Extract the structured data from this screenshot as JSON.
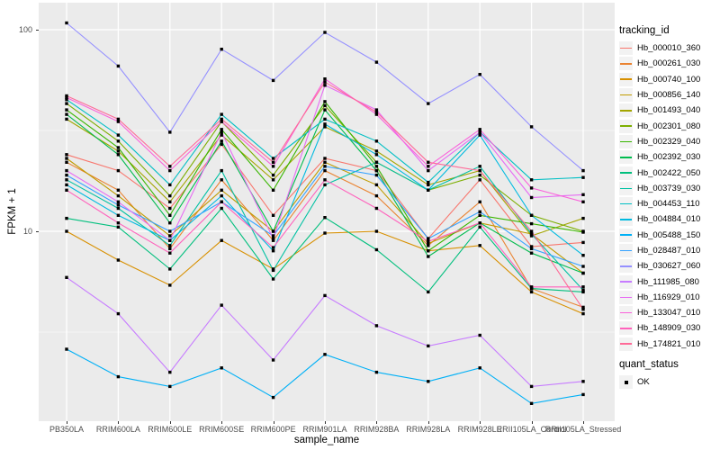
{
  "figure": {
    "x_axis_title": "sample_name",
    "y_axis_title": "FPKM + 1"
  },
  "legend": {
    "tracking_title": "tracking_id",
    "quant_title": "quant_status",
    "quant_items": [
      {
        "label": "OK",
        "marker": "black-square"
      }
    ]
  },
  "colors": {
    "panel_bg": "#EBEBEB",
    "grid": "#FFFFFF",
    "point": "#000000",
    "tick_mark": "#333333",
    "tick_label": "#4D4D4D",
    "legend_key_bg": "#F2F2F2"
  },
  "chart_data": {
    "type": "line",
    "title": "",
    "xlabel": "sample_name",
    "ylabel": "FPKM + 1",
    "y_scale": "log10",
    "ylim": [
      1.2,
      135
    ],
    "grid": true,
    "legend_position": "right",
    "point_shape": "filled-black-square",
    "y_ticks": [
      {
        "label": "100",
        "value": 100
      },
      {
        "label": "10",
        "value": 10
      }
    ],
    "y_minor_gridlines": [
      31.62,
      3.162
    ],
    "categories": [
      "PB350LA",
      "RRIM600LA",
      "RRIM600LE",
      "RRIM600SE",
      "RRIM600PE",
      "RRIM901LA",
      "RRIM928BA",
      "RRIM928LA",
      "RRIM928LE",
      "RRII105LA_Control",
      "RRII105LA_Stressed"
    ],
    "series": [
      {
        "name": "Hb_000010_360",
        "color": "#F8766D",
        "values": [
          24,
          20,
          13,
          27,
          12,
          23,
          20,
          9.2,
          18,
          8.4,
          8.8
        ]
      },
      {
        "name": "Hb_000261_030",
        "color": "#EA8331",
        "values": [
          22,
          16,
          8.2,
          18,
          9,
          20,
          15,
          8.5,
          14,
          5.2,
          4.2
        ]
      },
      {
        "name": "Hb_000740_100",
        "color": "#D89000",
        "values": [
          10,
          7.2,
          5.4,
          9,
          6.5,
          9.8,
          10,
          8,
          8.5,
          5,
          3.9
        ]
      },
      {
        "name": "Hb_000856_140",
        "color": "#C09B00",
        "values": [
          23,
          15,
          9.5,
          16,
          10,
          22,
          17,
          8.7,
          11,
          9.7,
          6.2
        ]
      },
      {
        "name": "Hb_001493_040",
        "color": "#A3A500",
        "values": [
          36,
          25,
          14,
          30,
          18,
          33,
          25,
          17,
          20,
          9.5,
          11.6
        ]
      },
      {
        "name": "Hb_002301_080",
        "color": "#7CAE00",
        "values": [
          43,
          28,
          15,
          35,
          19,
          42,
          22,
          16,
          19,
          12,
          10
        ]
      },
      {
        "name": "Hb_002329_040",
        "color": "#39B600",
        "values": [
          40,
          26,
          12,
          32,
          16,
          44,
          21,
          8,
          12,
          10.9,
          9.9
        ]
      },
      {
        "name": "Hb_002392_030",
        "color": "#00BB4E",
        "values": [
          38,
          24,
          11,
          28,
          10,
          40,
          20,
          7.5,
          11,
          7.8,
          6.2
        ]
      },
      {
        "name": "Hb_002422_050",
        "color": "#00BF7D",
        "values": [
          11.6,
          10.5,
          6.5,
          13,
          5.8,
          11.7,
          8.1,
          5,
          10.5,
          5.2,
          5
        ]
      },
      {
        "name": "Hb_003739_030",
        "color": "#00C1A3",
        "values": [
          18,
          13,
          8.5,
          20,
          6.4,
          17,
          22,
          16,
          21,
          9.7,
          5.1
        ]
      },
      {
        "name": "Hb_004453_110",
        "color": "#00BFC4",
        "values": [
          45,
          30,
          17,
          38,
          23,
          36,
          28,
          17.5,
          31,
          18,
          18.5
        ]
      },
      {
        "name": "Hb_004884_010",
        "color": "#00BAE0",
        "values": [
          17,
          12,
          9,
          15,
          8,
          34,
          24,
          16,
          30,
          12,
          7.6
        ]
      },
      {
        "name": "Hb_005488_150",
        "color": "#00B0F6",
        "values": [
          2.6,
          1.9,
          1.7,
          2.1,
          1.5,
          2.45,
          2,
          1.8,
          2.1,
          1.4,
          1.55
        ]
      },
      {
        "name": "Hb_028487_010",
        "color": "#35A2FF",
        "values": [
          19,
          13.5,
          10,
          14,
          9.5,
          21,
          19,
          9.2,
          12.5,
          8.2,
          6.7
        ]
      },
      {
        "name": "Hb_030627_060",
        "color": "#9590FF",
        "values": [
          108,
          66,
          31,
          80,
          56,
          97,
          69,
          43,
          60,
          33,
          20
        ]
      },
      {
        "name": "Hb_111985_080",
        "color": "#C77CFF",
        "values": [
          5.9,
          3.9,
          2,
          4.3,
          2.3,
          4.8,
          3.4,
          2.7,
          3.05,
          1.7,
          1.8
        ]
      },
      {
        "name": "Hb_116929_010",
        "color": "#E76BF3",
        "values": [
          20,
          14,
          9,
          31,
          9.2,
          53,
          40,
          20,
          31,
          14.7,
          15.2
        ]
      },
      {
        "name": "Hb_133047_010",
        "color": "#FA62DB",
        "values": [
          46,
          35,
          20,
          35,
          21,
          57,
          38,
          21,
          32,
          16.4,
          14
        ]
      },
      {
        "name": "Hb_148909_030",
        "color": "#FF62BC",
        "values": [
          16,
          11,
          7.8,
          14,
          8.3,
          18,
          13,
          8.9,
          11,
          5.3,
          5.3
        ]
      },
      {
        "name": "Hb_174821_010",
        "color": "#FF6A98",
        "values": [
          47,
          36,
          21,
          36,
          22,
          55,
          39,
          22,
          20,
          10,
          4.1
        ]
      }
    ],
    "quant_status": {
      "label": "OK",
      "applies_to": "all points"
    }
  }
}
